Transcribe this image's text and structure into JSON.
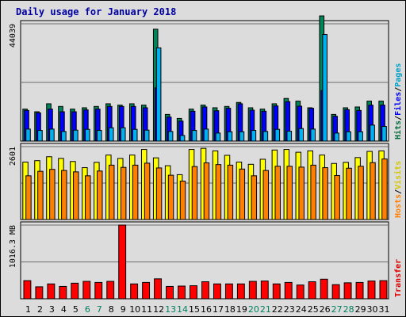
{
  "chart_data": {
    "type": "bar",
    "title": "Daily usage for January 2018",
    "days": [
      "1",
      "2",
      "3",
      "4",
      "5",
      "6",
      "7",
      "8",
      "9",
      "10",
      "11",
      "12",
      "13",
      "14",
      "15",
      "16",
      "17",
      "18",
      "19",
      "20",
      "21",
      "22",
      "23",
      "24",
      "25",
      "26",
      "27",
      "28",
      "29",
      "30",
      "31"
    ],
    "weekend_days": [
      6,
      7,
      13,
      14,
      20,
      21,
      27,
      28
    ],
    "panels": [
      {
        "id": "hits",
        "scale_label": "44039",
        "ymax": 44039,
        "side_labels": [
          {
            "text": "Hits",
            "color": "#006a3d"
          },
          {
            "text": "/",
            "color": "#000000"
          },
          {
            "text": "Files",
            "color": "#0000ff"
          },
          {
            "text": "/",
            "color": "#000000"
          },
          {
            "text": "Pages",
            "color": "#00a0c8"
          }
        ],
        "series": [
          {
            "name": "Hits",
            "color": "#00855a",
            "values": [
              12000,
              11000,
              14000,
              13000,
              12000,
              12500,
              13000,
              14000,
              13500,
              14000,
              13500,
              42000,
              10000,
              8500,
              12000,
              13500,
              12500,
              13000,
              14500,
              12500,
              12000,
              14000,
              16000,
              15000,
              12500,
              47000,
              10000,
              12500,
              12800,
              15000,
              15000
            ]
          },
          {
            "name": "Files",
            "color": "#0000ff",
            "values": [
              11500,
              10600,
              12000,
              11000,
              11000,
              11700,
              12000,
              13000,
              13000,
              13000,
              12500,
              20000,
              9000,
              7500,
              11200,
              12800,
              11400,
              12300,
              14000,
              11600,
              11200,
              13200,
              14800,
              13100,
              12300,
              19000,
              9300,
              11800,
              11500,
              13500,
              13500
            ]
          },
          {
            "name": "Pages",
            "color": "#00b0f0",
            "values": [
              4500,
              4000,
              4500,
              3600,
              4100,
              4400,
              4000,
              5000,
              5000,
              4400,
              4100,
              35000,
              3600,
              2100,
              4000,
              4500,
              3000,
              3500,
              3500,
              4000,
              3600,
              4400,
              3700,
              4700,
              4500,
              40000,
              3000,
              3500,
              3500,
              6000,
              5500
            ]
          }
        ]
      },
      {
        "id": "visits",
        "scale_label": "2601",
        "ymax": 2601,
        "side_labels": [
          {
            "text": "Hosts",
            "color": "#ff8000"
          },
          {
            "text": "/",
            "color": "#000000"
          },
          {
            "text": "Visits",
            "color": "#d4c800"
          }
        ],
        "series": [
          {
            "name": "Visits",
            "color": "#ffff00",
            "values": [
              2050,
              2100,
              2240,
              2180,
              2070,
              1850,
              2040,
              2300,
              2180,
              2300,
              2500,
              2200,
              1920,
              1600,
              2500,
              2540,
              2450,
              2290,
              2050,
              1970,
              2150,
              2480,
              2500,
              2400,
              2450,
              2300,
              2000,
              2040,
              2210,
              2430,
              2450
            ]
          },
          {
            "name": "Hosts",
            "color": "#ff8000",
            "values": [
              1560,
              1720,
              1790,
              1750,
              1700,
              1560,
              1730,
              1940,
              1860,
              1940,
              2010,
              1840,
              1580,
              1370,
              1890,
              2020,
              1960,
              1940,
              1800,
              1560,
              1750,
              1900,
              1900,
              1870,
              1940,
              1850,
              1570,
              1830,
              1900,
              2030,
              2160
            ]
          }
        ]
      },
      {
        "id": "transfer",
        "scale_label": "1016.3 MB",
        "ymax": 1016.3,
        "side_labels": [
          {
            "text": "Transfer",
            "color": "#e00000"
          }
        ],
        "series": [
          {
            "name": "Transfer",
            "color": "#ff0000",
            "values": [
              250,
              165,
              205,
              170,
              215,
              240,
              225,
              240,
              1016.3,
              205,
              225,
              275,
              170,
              175,
              180,
              235,
              205,
              205,
              205,
              240,
              245,
              205,
              225,
              190,
              235,
              270,
              195,
              220,
              225,
              245,
              250
            ]
          }
        ]
      }
    ]
  }
}
